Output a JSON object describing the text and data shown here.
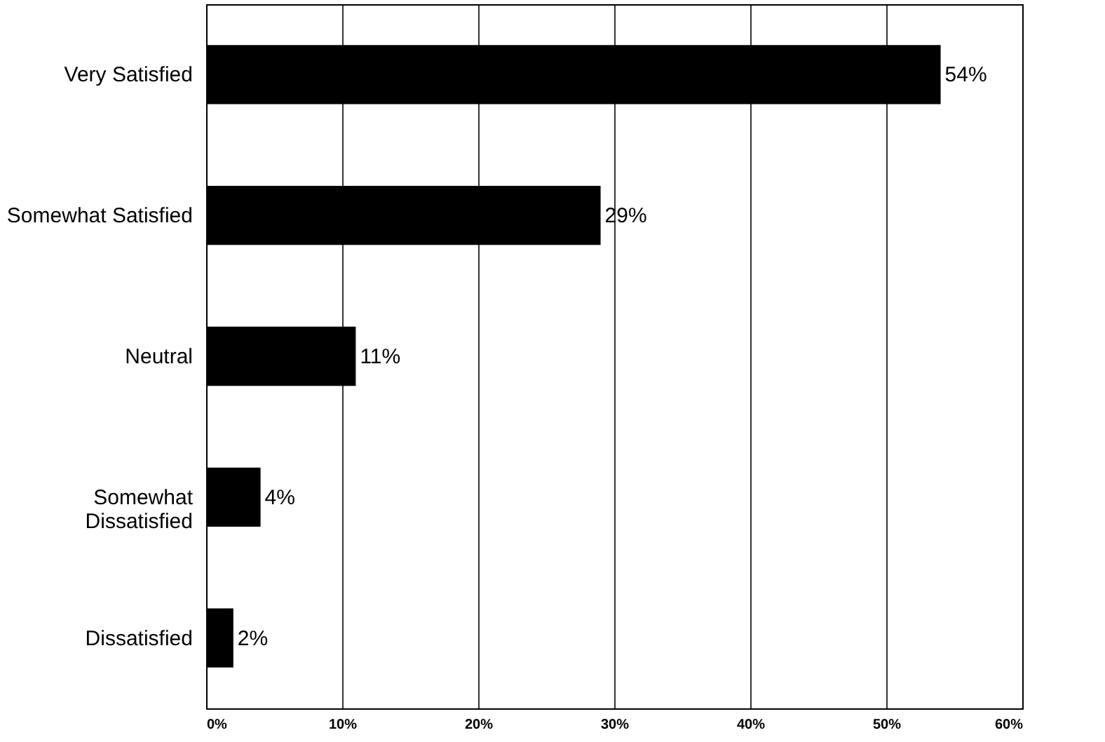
{
  "chart_data": {
    "type": "bar",
    "orientation": "horizontal",
    "categories": [
      "Very Satisfied",
      "Somewhat Satisfied",
      "Neutral",
      "Somewhat Dissatisfied",
      "Dissatisfied"
    ],
    "values": [
      54,
      29,
      11,
      4,
      2
    ],
    "value_labels": [
      "54%",
      "29%",
      "11%",
      "4%",
      "2%"
    ],
    "color": "#000000",
    "xlim": [
      0,
      60
    ],
    "xticks": [
      {
        "value": 0,
        "label": "0%"
      },
      {
        "value": 10,
        "label": "10%"
      },
      {
        "value": 20,
        "label": "20%"
      },
      {
        "value": 30,
        "label": "30%"
      },
      {
        "value": 40,
        "label": "40%"
      },
      {
        "value": 50,
        "label": "50%"
      },
      {
        "value": 60,
        "label": "60%"
      }
    ],
    "grid": "x"
  }
}
